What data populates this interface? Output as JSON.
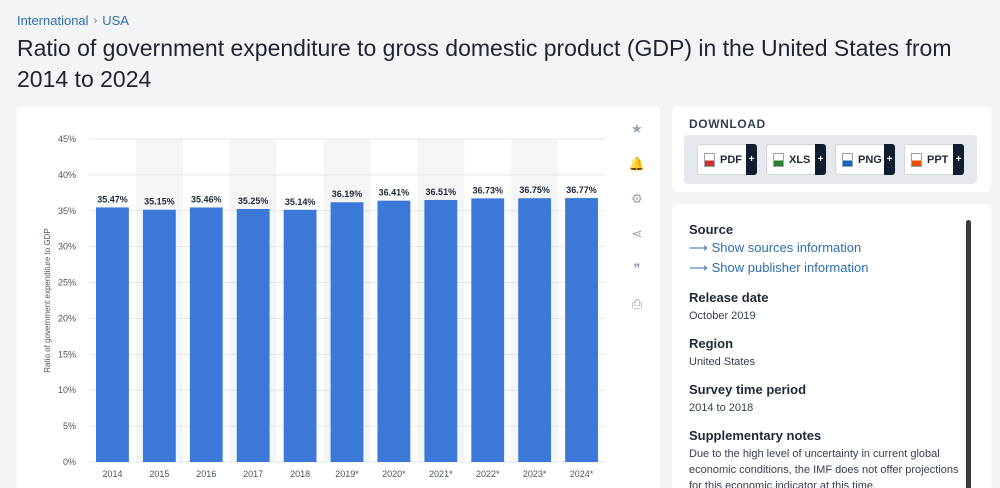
{
  "breadcrumb": {
    "items": [
      "International",
      "USA"
    ],
    "separator": "›"
  },
  "title": "Ratio of government expenditure to gross domestic product (GDP) in the United States from 2014 to 2024",
  "chart_data": {
    "type": "bar",
    "categories": [
      "2014",
      "2015",
      "2016",
      "2017",
      "2018",
      "2019*",
      "2020*",
      "2021*",
      "2022*",
      "2023*",
      "2024*"
    ],
    "values": [
      35.47,
      35.15,
      35.46,
      35.25,
      35.14,
      36.19,
      36.41,
      36.51,
      36.73,
      36.75,
      36.77
    ],
    "data_labels": [
      "35.47%",
      "35.15%",
      "35.46%",
      "35.25%",
      "35.14%",
      "36.19%",
      "36.41%",
      "36.51%",
      "36.73%",
      "36.75%",
      "36.77%"
    ],
    "ylabel": "Ratio of government expenditure to GDP",
    "xlabel": "",
    "ylim": [
      0,
      45
    ],
    "yticks": [
      0,
      5,
      10,
      15,
      20,
      25,
      30,
      35,
      40,
      45
    ],
    "ytick_labels": [
      "0%",
      "5%",
      "10%",
      "15%",
      "20%",
      "25%",
      "30%",
      "35%",
      "40%",
      "45%"
    ],
    "bar_color": "#3c78d8",
    "band_color": "#f4f5f6",
    "grid": true
  },
  "tools": [
    {
      "name": "star-icon",
      "glyph": "★"
    },
    {
      "name": "bell-icon",
      "glyph": "🔔"
    },
    {
      "name": "gear-icon",
      "glyph": "⚙"
    },
    {
      "name": "share-icon",
      "glyph": "⋖"
    },
    {
      "name": "quote-icon",
      "glyph": "❞"
    },
    {
      "name": "print-icon",
      "glyph": "⎙"
    }
  ],
  "download": {
    "title": "DOWNLOAD",
    "buttons": [
      {
        "label": "PDF",
        "color": "#d32f2f",
        "plus": "+"
      },
      {
        "label": "XLS",
        "color": "#2e7d32",
        "plus": "+"
      },
      {
        "label": "PNG",
        "color": "#1565c0",
        "plus": "+"
      },
      {
        "label": "PPT",
        "color": "#e65100",
        "plus": "+"
      }
    ]
  },
  "info": {
    "source_heading": "Source",
    "source_link_1": "Show sources information",
    "source_link_2": "Show publisher information",
    "release_heading": "Release date",
    "release_value": "October 2019",
    "region_heading": "Region",
    "region_value": "United States",
    "survey_heading": "Survey time period",
    "survey_value": "2014 to 2018",
    "notes_heading": "Supplementary notes",
    "notes_value": "Due to the high level of uncertainty in current global economic conditions, the IMF does not offer projections for this economic indicator at this time."
  }
}
